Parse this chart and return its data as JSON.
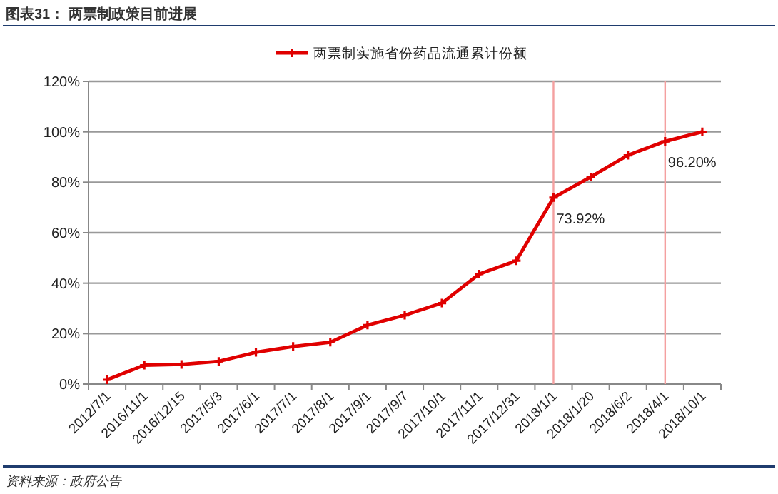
{
  "chart_data": {
    "type": "line",
    "title": "图表31：  两票制政策目前进展",
    "categories": [
      "2012/7/1",
      "2016/11/1",
      "2016/12/15",
      "2017/5/3",
      "2017/6/1",
      "2017/7/1",
      "2017/8/1",
      "2017/9/1",
      "2017/9/7",
      "2017/10/1",
      "2017/11/1",
      "2017/12/31",
      "2018/1/1",
      "2018/1/20",
      "2018/6/2",
      "2018/4/1",
      "2018/10/1"
    ],
    "series": [
      {
        "name": "两票制实施省份药品流通累计份额",
        "color": "#e00000",
        "values": [
          1.7,
          7.5,
          7.8,
          9,
          12.6,
          14.9,
          16.6,
          23.4,
          27.3,
          32.1,
          43.6,
          48.9,
          73.92,
          82.1,
          90.7,
          96.2,
          100
        ]
      }
    ],
    "ylim": [
      0,
      120
    ],
    "yticks": [
      {
        "value": 0,
        "label": "0%"
      },
      {
        "value": 20,
        "label": "20%"
      },
      {
        "value": 40,
        "label": "40%"
      },
      {
        "value": 60,
        "label": "60%"
      },
      {
        "value": 80,
        "label": "80%"
      },
      {
        "value": 100,
        "label": "100%"
      },
      {
        "value": 120,
        "label": "120%"
      }
    ],
    "grid": "y",
    "legend": "top",
    "marker": "cross",
    "line_style": "solid",
    "ref_lines": [
      {
        "axis": "x",
        "value": "2018/1/1",
        "color": "#f4a0a0"
      },
      {
        "axis": "x",
        "value": "2018/4/1",
        "color": "#f4a0a0"
      }
    ],
    "annotations": [
      {
        "text": "73.92%",
        "x": "2018/1/1",
        "y": 73.92
      },
      {
        "text": "96.20%",
        "x": "2018/4/1",
        "y": 96.2
      },
      "资料来源：政府公告"
    ]
  }
}
